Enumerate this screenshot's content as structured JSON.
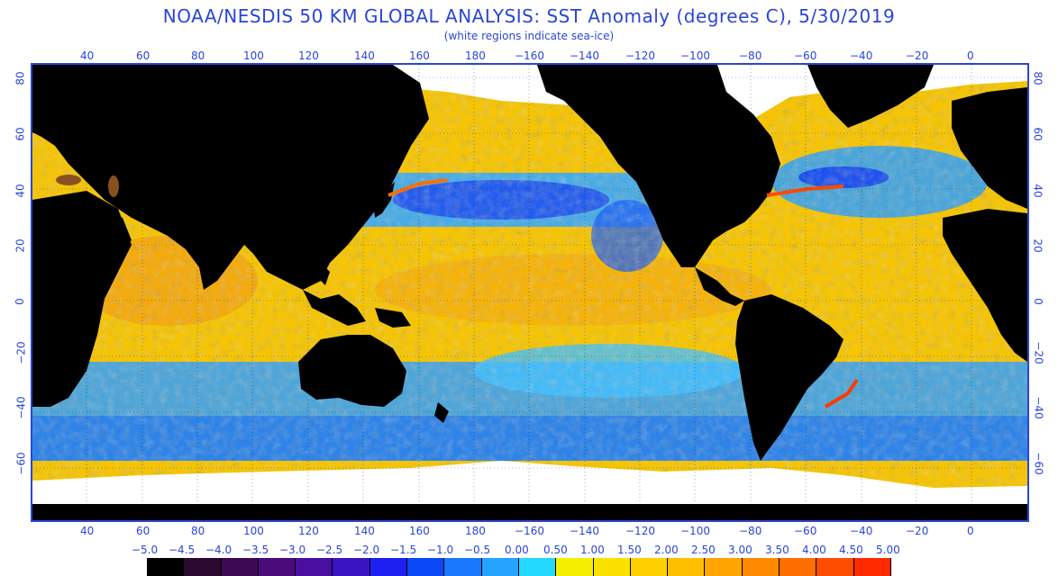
{
  "header": {
    "title": "NOAA/NESDIS 50 KM GLOBAL ANALYSIS: SST Anomaly (degrees C), 5/30/2019",
    "subtitle": "(white regions indicate sea-ice)"
  },
  "axes": {
    "lon_labels": [
      "40",
      "60",
      "80",
      "100",
      "120",
      "140",
      "160",
      "180",
      "−160",
      "−140",
      "−120",
      "−100",
      "−80",
      "−60",
      "−40",
      "−20",
      "0"
    ],
    "lat_labels": [
      "80",
      "60",
      "40",
      "20",
      "0",
      "−20",
      "−40",
      "−60"
    ]
  },
  "legend": {
    "labels": [
      "−5.0",
      "−4.5",
      "−4.0",
      "−3.5",
      "−3.0",
      "−2.5",
      "−2.0",
      "−1.5",
      "−1.0",
      "−0.5",
      "0.00",
      "0.50",
      "1.00",
      "1.50",
      "2.00",
      "2.50",
      "3.00",
      "3.50",
      "4.00",
      "4.50",
      "5.00"
    ],
    "colors": [
      "#000000",
      "#2a0a2e",
      "#3c0a55",
      "#4b0b7a",
      "#4a0fa0",
      "#3a14c2",
      "#1d20f0",
      "#0a48f8",
      "#1878ff",
      "#24a4ff",
      "#22d8ff",
      "#f4f000",
      "#fbe100",
      "#ffd000",
      "#ffbf00",
      "#ffa600",
      "#ff8a00",
      "#ff6e00",
      "#ff4d00",
      "#ff2a00"
    ]
  },
  "colors": {
    "ocean_base": "#f7c600",
    "warm_anomaly": "#f49a10",
    "cool_anomaly": "#2fa0ff",
    "strong_cool": "#1a48f0",
    "land": "#000000",
    "sea_ice": "#ffffff",
    "text_accent": "#2b45d9"
  }
}
